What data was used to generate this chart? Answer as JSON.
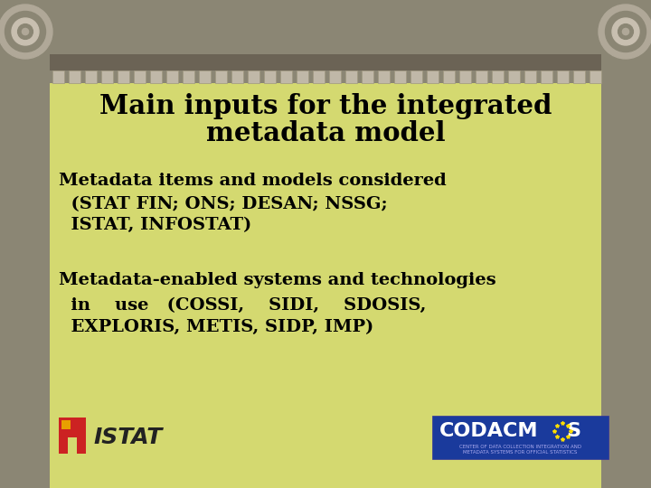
{
  "title_line1": "Main inputs for the integrated",
  "title_line2": "metadata model",
  "bullet1_line1": "Metadata items and models considered",
  "bullet1_line2": "  (STAT FIN; ONS; DESAN; NSSG;",
  "bullet1_line3": "  ISTAT, INFOSTAT)",
  "bullet2_line1": "Metadata-enabled systems and technologies",
  "bullet2_line2": "  in    use   (COSSI,    SIDI,    SDOSIS,",
  "bullet2_line3": "  EXPLORIS, METIS, SIDP, IMP)",
  "bg_color": "#d4d970",
  "header_bg": "#8b8674",
  "dark_bar": "#6b6355",
  "dentil_color": "#c0b8a8",
  "title_color": "#000000",
  "body_color": "#000000",
  "fig_bg": "#8b8674",
  "spiral_outer": "#b0a898",
  "spiral_mid": "#8b8470",
  "spiral_inner": "#c8bfb0"
}
